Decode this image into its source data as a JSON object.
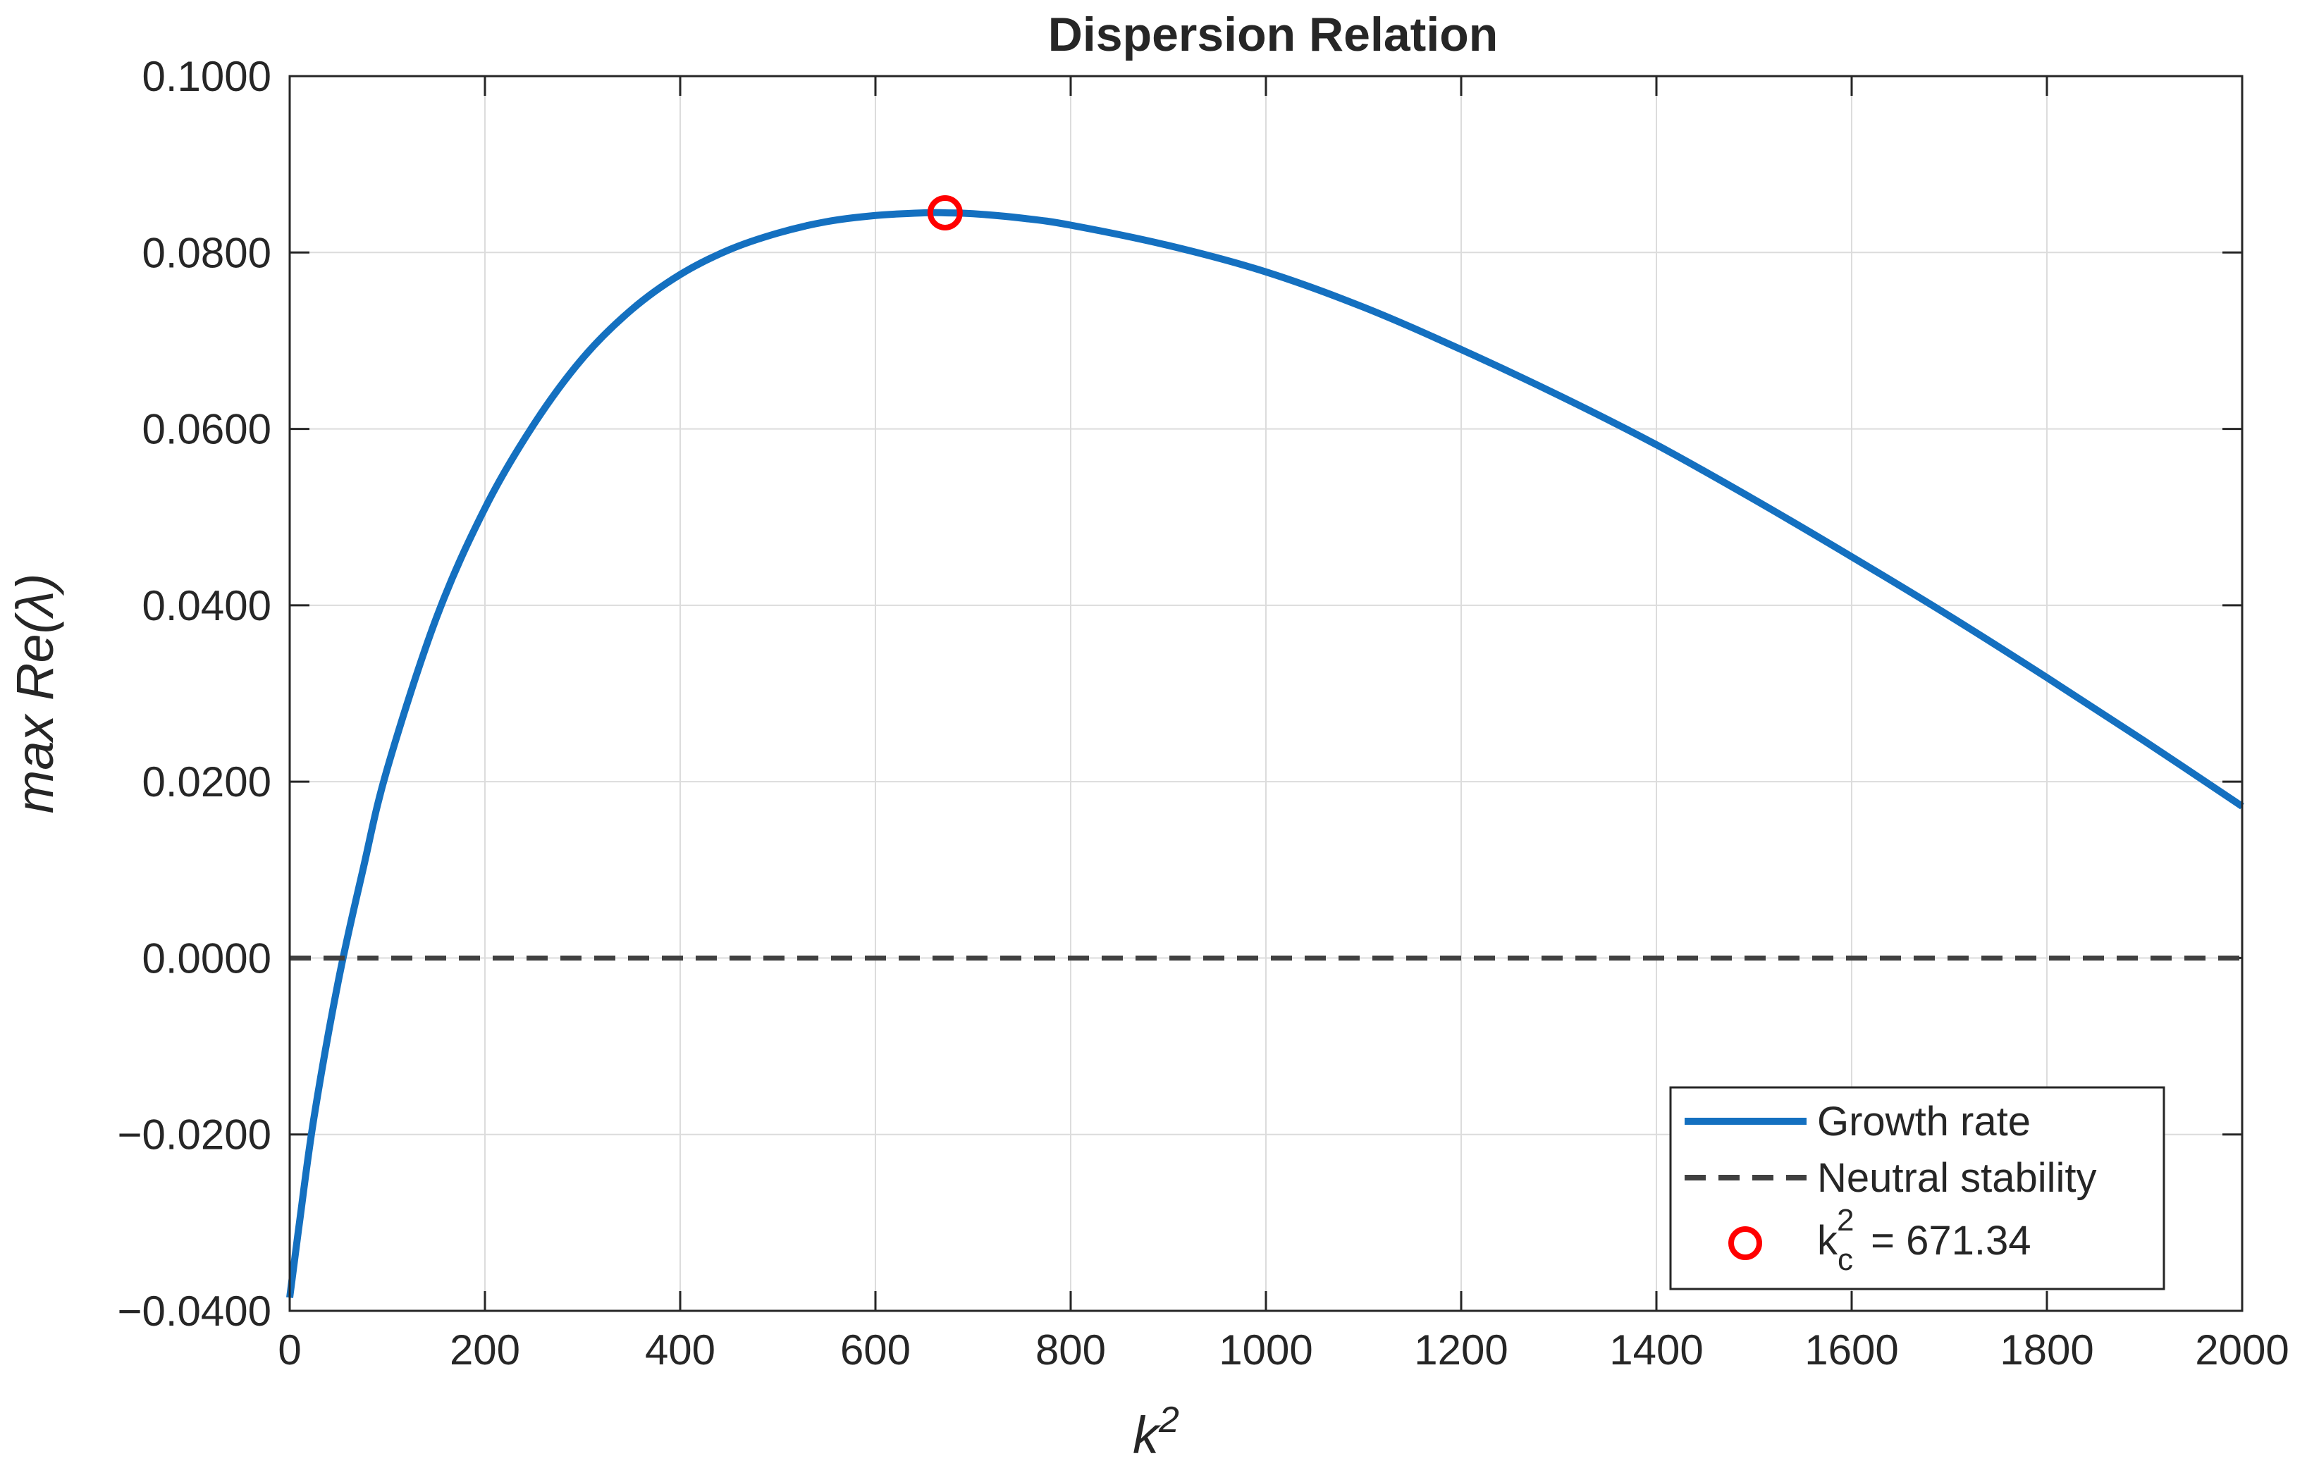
{
  "chart_data": {
    "type": "line",
    "title": "Dispersion Relation",
    "xlabel": "k",
    "xlabel_superscript": "2",
    "ylabel": "max Re(λ)",
    "xlim": [
      0,
      2000
    ],
    "ylim": [
      -0.04,
      0.1
    ],
    "grid": true,
    "legend_position": "bottom-right",
    "x_ticks": [
      0,
      200,
      400,
      600,
      800,
      1000,
      1200,
      1400,
      1600,
      1800,
      2000
    ],
    "x_tick_labels": [
      "0",
      "200",
      "400",
      "600",
      "800",
      "1000",
      "1200",
      "1400",
      "1600",
      "1800",
      "2000"
    ],
    "y_ticks": [
      -0.04,
      -0.02,
      0.0,
      0.02,
      0.04,
      0.06,
      0.08,
      0.1
    ],
    "y_tick_labels": [
      "−0.0400",
      "−0.0200",
      "0.0000",
      "0.0200",
      "0.0400",
      "0.0600",
      "0.0800",
      "0.1000"
    ],
    "series": [
      {
        "name": "Growth rate",
        "style": "solid",
        "color": "#1470c0",
        "x": [
          0,
          10,
          25,
          50,
          75,
          100,
          150,
          200,
          250,
          300,
          350,
          400,
          450,
          500,
          550,
          600,
          650,
          671.34,
          700,
          750,
          800,
          900,
          1000,
          1100,
          1200,
          1300,
          1400,
          1500,
          1600,
          1700,
          1800,
          1900,
          2000
        ],
        "y": [
          -0.0385,
          -0.03,
          -0.018,
          -0.0025,
          0.01,
          0.0215,
          0.0385,
          0.051,
          0.0605,
          0.068,
          0.0735,
          0.0775,
          0.0803,
          0.0822,
          0.0835,
          0.0842,
          0.0845,
          0.0845,
          0.0844,
          0.0839,
          0.0831,
          0.0808,
          0.0778,
          0.0738,
          0.069,
          0.0638,
          0.0582,
          0.052,
          0.0455,
          0.0388,
          0.0318,
          0.0246,
          0.0172
        ]
      },
      {
        "name": "Neutral stability",
        "style": "dashed",
        "color": "#404040",
        "x": [
          0,
          2000
        ],
        "y": [
          0.0,
          0.0
        ]
      }
    ],
    "markers": [
      {
        "legend_label": "k",
        "legend_label_subscript": "c",
        "legend_label_superscript": "2",
        "legend_label_suffix": " = 671.34",
        "x": 671.34,
        "y": 0.0845,
        "color": "#ff0000",
        "symbol": "circle"
      }
    ]
  }
}
